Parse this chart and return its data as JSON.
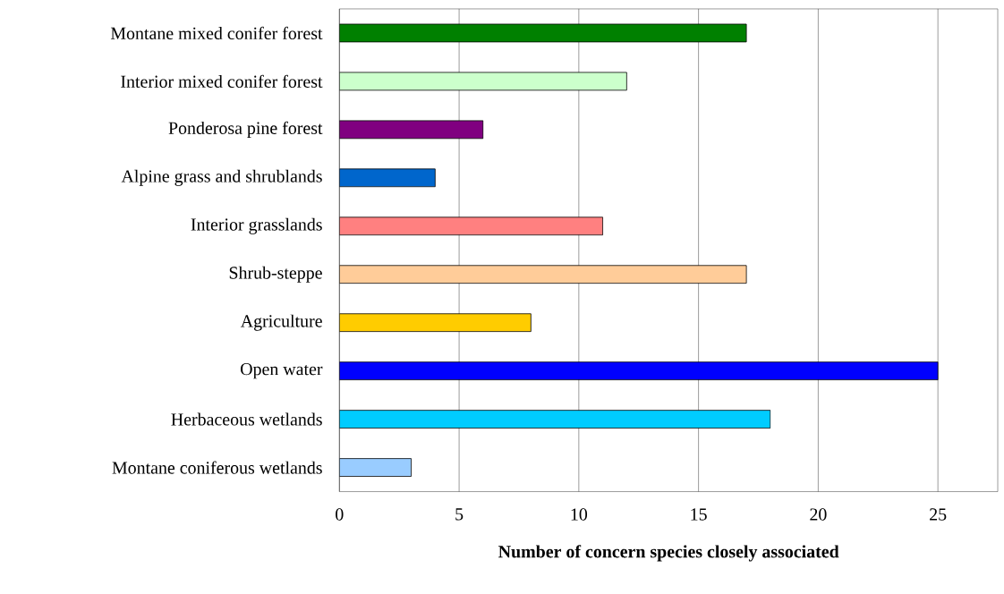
{
  "chart_data": {
    "type": "bar",
    "orientation": "horizontal",
    "xlabel": "Number of concern species closely associated",
    "categories": [
      "Montane mixed conifer forest",
      "Interior mixed conifer forest",
      "Ponderosa pine forest",
      "Alpine grass and shrublands",
      "Interior grasslands",
      "Shrub-steppe",
      "Agriculture",
      "Open water",
      "Herbaceous wetlands",
      "Montane coniferous wetlands"
    ],
    "values": [
      17,
      12,
      6,
      4,
      11,
      17,
      8,
      25,
      18,
      3
    ],
    "colors": [
      "#008000",
      "#ccffcc",
      "#800080",
      "#0066cc",
      "#ff8080",
      "#ffcc99",
      "#ffcc00",
      "#0000ff",
      "#00ccff",
      "#99ccff"
    ],
    "xlim": [
      0,
      27.5
    ],
    "xticks": [
      0,
      5,
      10,
      15,
      20,
      25
    ],
    "grid": "x"
  }
}
